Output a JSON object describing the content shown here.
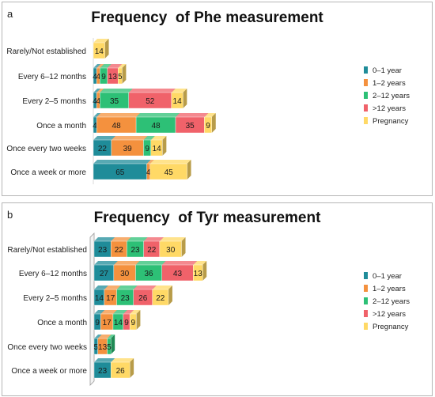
{
  "chart_data": [
    {
      "type": "bar",
      "orientation": "horizontal",
      "stacked": true,
      "panel_label": "a",
      "title": "Frequency  of Phe measurement",
      "categories": [
        "Rarely/Not established",
        "Every 6–12 months",
        "Every 2–5 months",
        "Once a month",
        "Once every two weeks",
        "Once a week or more"
      ],
      "series": [
        {
          "name": "0–1 year",
          "color": "#1F8C99",
          "values": [
            0,
            4,
            4,
            4,
            22,
            65
          ]
        },
        {
          "name": "1–2 years",
          "color": "#F4913E",
          "values": [
            0,
            4,
            4,
            48,
            39,
            4
          ]
        },
        {
          "name": "2–12 years",
          "color": "#2DC076",
          "values": [
            0,
            9,
            35,
            48,
            9,
            0
          ]
        },
        {
          "name": ">12 years",
          "color": "#F0626A",
          "values": [
            0,
            13,
            52,
            35,
            0,
            0
          ]
        },
        {
          "name": "Pregnancy",
          "color": "#FFD966",
          "values": [
            14,
            5,
            14,
            9,
            14,
            45
          ]
        }
      ],
      "legend_position": "right",
      "grid": false
    },
    {
      "type": "bar",
      "orientation": "horizontal",
      "stacked": true,
      "panel_label": "b",
      "title": "Frequency  of Tyr measurement",
      "categories": [
        "Rarely/Not established",
        "Every 6–12 months",
        "Every 2–5 months",
        "Once a month",
        "Once every two weeks",
        "Once a week or more"
      ],
      "series": [
        {
          "name": "0–1 year",
          "color": "#1F8C99",
          "values": [
            23,
            27,
            14,
            9,
            5,
            23
          ]
        },
        {
          "name": "1–2 years",
          "color": "#F4913E",
          "values": [
            22,
            30,
            17,
            17,
            13,
            0
          ]
        },
        {
          "name": "2–12 years",
          "color": "#2DC076",
          "values": [
            23,
            36,
            23,
            14,
            5,
            0
          ]
        },
        {
          "name": ">12 years",
          "color": "#F0626A",
          "values": [
            22,
            43,
            26,
            9,
            0,
            0
          ]
        },
        {
          "name": "Pregnancy",
          "color": "#FFD966",
          "values": [
            30,
            13,
            22,
            9,
            0,
            26
          ]
        }
      ],
      "legend_position": "right",
      "grid": false
    }
  ]
}
